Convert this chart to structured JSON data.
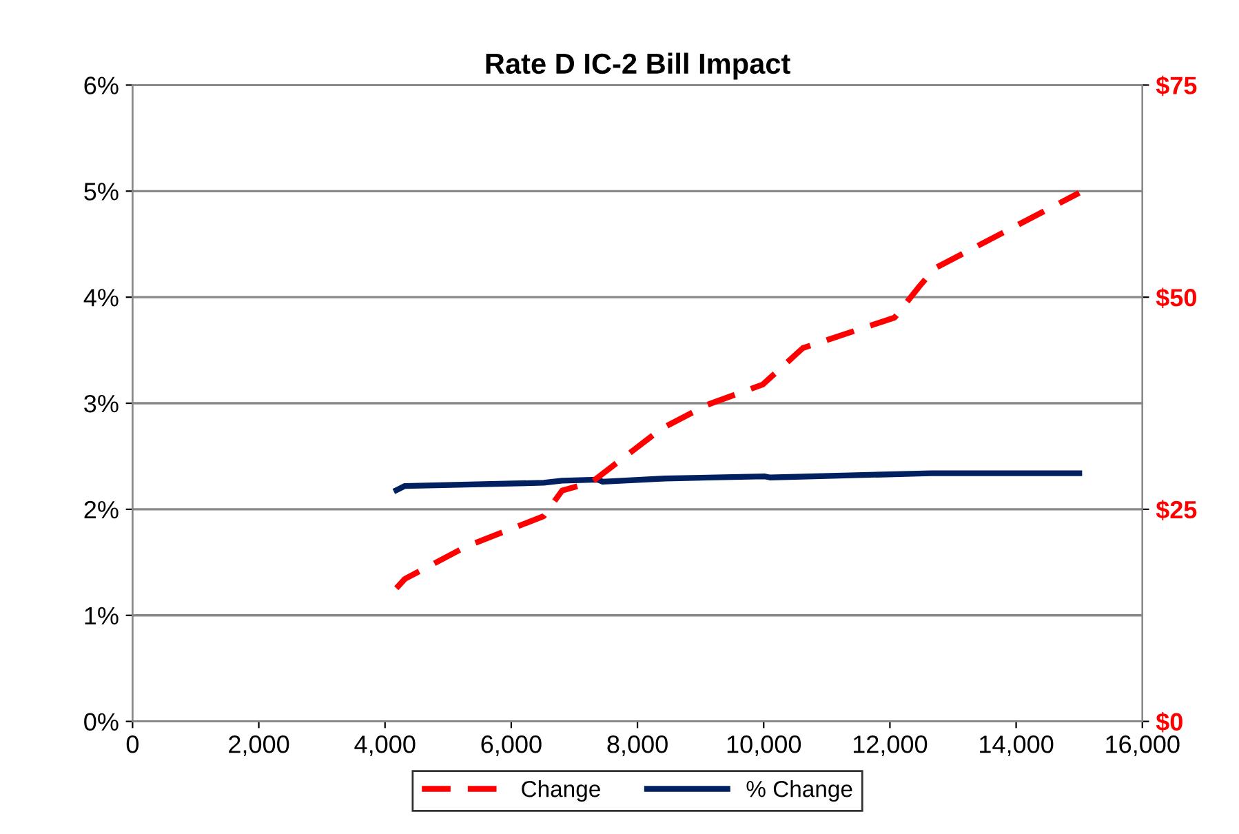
{
  "chart_data": {
    "type": "line",
    "title": "Rate D IC-2 Bill Impact",
    "xlim": [
      0,
      16000
    ],
    "xticks": [
      0,
      {
        "value": 2000,
        "label": "2,000"
      },
      {
        "value": 4000,
        "label": "4,000"
      },
      {
        "value": 6000,
        "label": "6,000"
      },
      {
        "value": 8000,
        "label": "8,000"
      },
      {
        "value": 10000,
        "label": "10,000"
      },
      {
        "value": 12000,
        "label": "12,000"
      },
      {
        "value": 14000,
        "label": "14,000"
      },
      {
        "value": 16000,
        "label": "16,000"
      }
    ],
    "ylim": [
      0,
      0.06
    ],
    "yticks": [
      {
        "value": 0,
        "label": "0%"
      },
      {
        "value": 0.01,
        "label": "1%"
      },
      {
        "value": 0.02,
        "label": "2%"
      },
      {
        "value": 0.03,
        "label": "3%"
      },
      {
        "value": 0.04,
        "label": "4%"
      },
      {
        "value": 0.05,
        "label": "5%"
      },
      {
        "value": 0.06,
        "label": "6%"
      }
    ],
    "y2lim": [
      0,
      75
    ],
    "y2ticks": [
      {
        "value": 0,
        "label": "$0"
      },
      {
        "value": 25,
        "label": "$25"
      },
      {
        "value": 50,
        "label": "$50"
      },
      {
        "value": 75,
        "label": "$75"
      }
    ],
    "grid": "y",
    "legend": "bottom",
    "series": [
      {
        "name": "Change",
        "color": "#ff0000",
        "axis": "y2",
        "line_style": "dashed",
        "x": [
          4180,
          4315,
          5285,
          6515,
          6805,
          7275,
          8380,
          9100,
          9985,
          10620,
          12075,
          12470,
          12710,
          15000
        ],
        "values": [
          15.7,
          16.8,
          20.6,
          24.2,
          27.2,
          28.2,
          34.5,
          37.3,
          39.7,
          44.0,
          47.6,
          51.3,
          53.4,
          62.3
        ]
      },
      {
        "name": "% Change",
        "color": "#002060",
        "line_style": "solid",
        "x": [
          4180,
          4315,
          6515,
          6805,
          7370,
          7450,
          8430,
          10020,
          10100,
          12650,
          15000
        ],
        "values": [
          0.0218,
          0.0222,
          0.0225,
          0.0227,
          0.0228,
          0.0226,
          0.0229,
          0.0231,
          0.023,
          0.0234,
          0.0234
        ]
      }
    ]
  }
}
